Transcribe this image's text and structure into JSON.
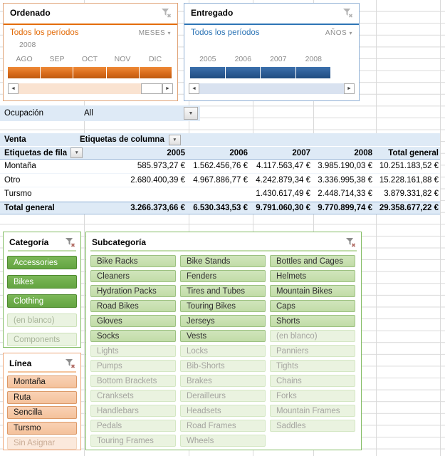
{
  "timelines": {
    "ordenado": {
      "title": "Ordenado",
      "range_label": "Todos los períodos",
      "level_label": "MESES",
      "group_label": "2008",
      "periods": [
        "AGO",
        "SEP",
        "OCT",
        "NOV",
        "DIC"
      ],
      "accent_color": "#E36C09"
    },
    "entregado": {
      "title": "Entregado",
      "range_label": "Todos los períodos",
      "level_label": "AÑOS",
      "group_label": "",
      "periods": [
        "2005",
        "2006",
        "2007",
        "2008"
      ],
      "accent_color": "#2E75B6"
    }
  },
  "report_filter": {
    "label": "Ocupación",
    "value": "All"
  },
  "pivot": {
    "value_label": "Venta",
    "column_area_label": "Etiquetas de columna",
    "row_area_label": "Etiquetas de fila",
    "columns": [
      "2005",
      "2006",
      "2007",
      "2008",
      "Total general"
    ],
    "rows": [
      {
        "label": "Montaña",
        "values": [
          "585.973,27 €",
          "1.562.456,76 €",
          "4.117.563,47 €",
          "3.985.190,03 €",
          "10.251.183,52 €"
        ]
      },
      {
        "label": "Otro",
        "values": [
          "2.680.400,39 €",
          "4.967.886,77 €",
          "4.242.879,34 €",
          "3.336.995,38 €",
          "15.228.161,88 €"
        ]
      },
      {
        "label": "Tursmo",
        "values": [
          "",
          "",
          "1.430.617,49 €",
          "2.448.714,33 €",
          "3.879.331,82 €"
        ]
      }
    ],
    "total": {
      "label": "Total general",
      "values": [
        "3.266.373,66 €",
        "6.530.343,53 €",
        "9.791.060,30 €",
        "9.770.899,74 €",
        "29.358.677,22 €"
      ]
    }
  },
  "slicers": {
    "categoria": {
      "title": "Categoría",
      "items": [
        {
          "label": "Accessories",
          "state": "on"
        },
        {
          "label": "Bikes",
          "state": "on"
        },
        {
          "label": "Clothing",
          "state": "on"
        },
        {
          "label": "(en blanco)",
          "state": "off"
        },
        {
          "label": "Components",
          "state": "off"
        }
      ]
    },
    "subcategoria": {
      "title": "Subcategoría",
      "columns": 3,
      "items": [
        {
          "label": "Bike Racks",
          "state": "on"
        },
        {
          "label": "Bike Stands",
          "state": "on"
        },
        {
          "label": "Bottles and Cages",
          "state": "on"
        },
        {
          "label": "Cleaners",
          "state": "on"
        },
        {
          "label": "Fenders",
          "state": "on"
        },
        {
          "label": "Helmets",
          "state": "on"
        },
        {
          "label": "Hydration Packs",
          "state": "on"
        },
        {
          "label": "Tires and Tubes",
          "state": "on"
        },
        {
          "label": "Mountain Bikes",
          "state": "on"
        },
        {
          "label": "Road Bikes",
          "state": "on"
        },
        {
          "label": "Touring Bikes",
          "state": "on"
        },
        {
          "label": "Caps",
          "state": "on"
        },
        {
          "label": "Gloves",
          "state": "on"
        },
        {
          "label": "Jerseys",
          "state": "on"
        },
        {
          "label": "Shorts",
          "state": "on"
        },
        {
          "label": "Socks",
          "state": "on"
        },
        {
          "label": "Vests",
          "state": "on"
        },
        {
          "label": "(en blanco)",
          "state": "off"
        },
        {
          "label": "Lights",
          "state": "off"
        },
        {
          "label": "Locks",
          "state": "off"
        },
        {
          "label": "Panniers",
          "state": "off"
        },
        {
          "label": "Pumps",
          "state": "off"
        },
        {
          "label": "Bib-Shorts",
          "state": "off"
        },
        {
          "label": "Tights",
          "state": "off"
        },
        {
          "label": "Bottom Brackets",
          "state": "off"
        },
        {
          "label": "Brakes",
          "state": "off"
        },
        {
          "label": "Chains",
          "state": "off"
        },
        {
          "label": "Cranksets",
          "state": "off"
        },
        {
          "label": "Derailleurs",
          "state": "off"
        },
        {
          "label": "Forks",
          "state": "off"
        },
        {
          "label": "Handlebars",
          "state": "off"
        },
        {
          "label": "Headsets",
          "state": "off"
        },
        {
          "label": "Mountain Frames",
          "state": "off"
        },
        {
          "label": "Pedals",
          "state": "off"
        },
        {
          "label": "Road Frames",
          "state": "off"
        },
        {
          "label": "Saddles",
          "state": "off"
        },
        {
          "label": "Touring Frames",
          "state": "off"
        },
        {
          "label": "Wheels",
          "state": "off"
        }
      ]
    },
    "linea": {
      "title": "Línea",
      "items": [
        {
          "label": "Montaña",
          "state": "on"
        },
        {
          "label": "Ruta",
          "state": "on"
        },
        {
          "label": "Sencilla",
          "state": "on"
        },
        {
          "label": "Tursmo",
          "state": "on"
        },
        {
          "label": "Sin Asignar",
          "state": "off"
        }
      ]
    }
  },
  "icons": {
    "clear_filter": "funnel-with-x",
    "dropdown_arrow": "▼",
    "scroll_left": "◄",
    "scroll_right": "►",
    "level_caret": "▾"
  },
  "colors": {
    "timeline_orange": "#E36C09",
    "timeline_blue": "#2E75B6",
    "timeline_bar_orange": "#D96B1B",
    "timeline_bar_blue": "#2C5B94",
    "pivot_row_highlight": "#DEEAF6",
    "slicer_green_selected": "#6FAE47",
    "slicer_green_medium": "#C9E0AF",
    "slicer_green_unselected": "#EAF3E1",
    "slicer_orange_selected": "#F6C9A3",
    "slicer_orange_unselected": "#FBE9DC",
    "gridline": "#D9D9D9"
  }
}
